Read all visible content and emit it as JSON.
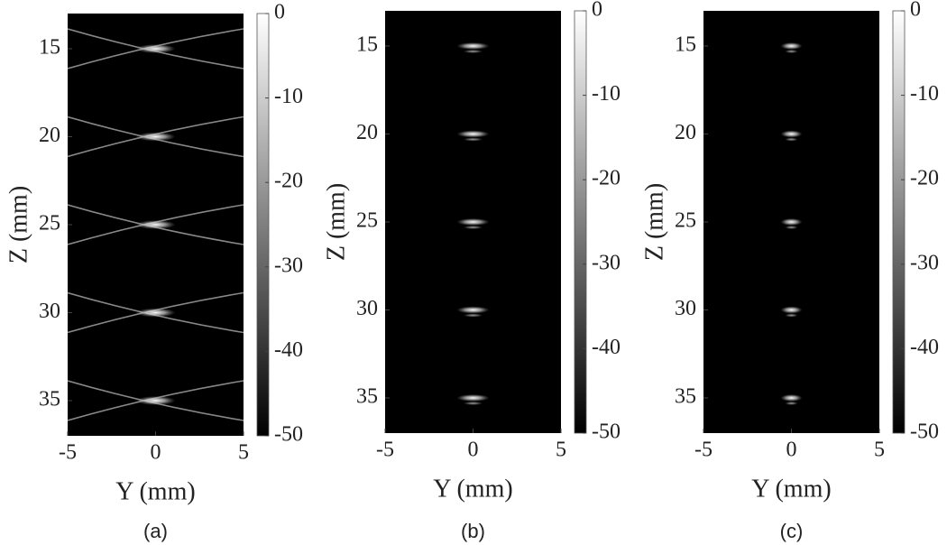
{
  "chart_data": [
    {
      "type": "image",
      "caption": "(a)",
      "xlabel": "Y (mm)",
      "ylabel": "Z (mm)",
      "xlim": [
        -5,
        5
      ],
      "xticks": [
        -5,
        0,
        5
      ],
      "ylim": [
        13,
        37
      ],
      "y_reversed": true,
      "yticks": [
        15,
        20,
        25,
        30,
        35
      ],
      "x": [
        0,
        0,
        0,
        0,
        0
      ],
      "values": [
        15,
        20,
        25,
        30,
        35
      ],
      "clim": [
        -50,
        0
      ],
      "cticks": [
        0,
        -10,
        -20,
        -30,
        -40,
        -50
      ],
      "colormap": [
        "#000000",
        "#ffffff"
      ]
    },
    {
      "type": "image",
      "caption": "(b)",
      "xlabel": "Y (mm)",
      "ylabel": "Z (mm)",
      "xlim": [
        -5,
        5
      ],
      "xticks": [
        -5,
        0,
        5
      ],
      "ylim": [
        13,
        37
      ],
      "y_reversed": true,
      "yticks": [
        15,
        20,
        25,
        30,
        35
      ],
      "x": [
        0,
        0,
        0,
        0,
        0
      ],
      "values": [
        15,
        20,
        25,
        30,
        35
      ],
      "clim": [
        -50,
        0
      ],
      "cticks": [
        0,
        -10,
        -20,
        -30,
        -40,
        -50
      ],
      "colormap": [
        "#000000",
        "#ffffff"
      ]
    },
    {
      "type": "image",
      "caption": "(c)",
      "xlabel": "Y (mm)",
      "ylabel": "Z (mm)",
      "xlim": [
        -5,
        5
      ],
      "xticks": [
        -5,
        0,
        5
      ],
      "ylim": [
        13,
        37
      ],
      "y_reversed": true,
      "yticks": [
        15,
        20,
        25,
        30,
        35
      ],
      "x": [
        0,
        0,
        0,
        0,
        0
      ],
      "values": [
        15,
        20,
        25,
        30,
        35
      ],
      "clim": [
        -50,
        0
      ],
      "cticks": [
        0,
        -10,
        -20,
        -30,
        -40,
        -50
      ],
      "colormap": [
        "#000000",
        "#ffffff"
      ]
    }
  ]
}
